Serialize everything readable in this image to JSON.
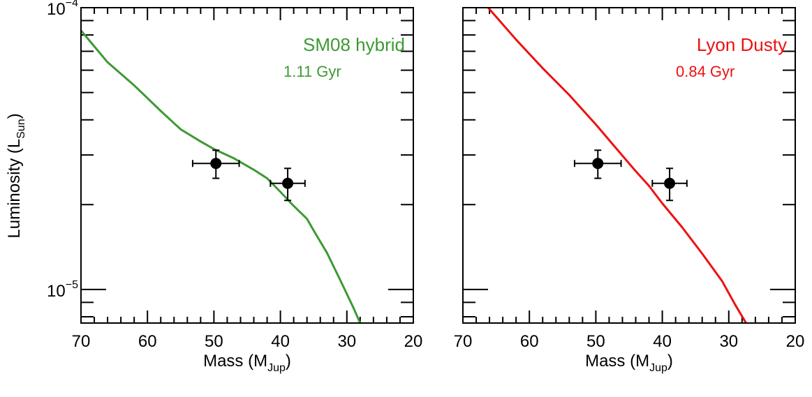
{
  "figure": {
    "ylabel": "Luminosity (L",
    "ylabel_sub": "Sun",
    "ylabel_close": ")"
  },
  "chart_data": [
    {
      "type": "line",
      "xlabel": "Mass (M",
      "xlabel_sub": "Jup",
      "xlabel_close": ")",
      "xlim": [
        70,
        20
      ],
      "xticks": [
        70,
        60,
        50,
        40,
        30,
        20
      ],
      "xtick_labels": [
        "70",
        "60",
        "50",
        "40",
        "30",
        "20"
      ],
      "ylim": [
        7.6e-06,
        0.0001
      ],
      "yscale": "log",
      "yticks": [
        1e-05,
        0.0001
      ],
      "ytick_labels": [
        {
          "base": "10",
          "exp": "−5"
        },
        {
          "base": "10",
          "exp": "−4"
        }
      ],
      "annotations": [
        "SM08 hybrid",
        "1.11 Gyr"
      ],
      "annotation_color": "#3c9a34",
      "series": [
        {
          "name": "SM08 hybrid",
          "color": "#3c9a34",
          "x": [
            70,
            66,
            62,
            58,
            55,
            52,
            50,
            47,
            44,
            42,
            40,
            38,
            36,
            35,
            33,
            31,
            29,
            28
          ],
          "y": [
            8.3e-05,
            6.4e-05,
            5.3e-05,
            4.3e-05,
            3.7e-05,
            3.35e-05,
            3.15e-05,
            2.92e-05,
            2.66e-05,
            2.48e-05,
            2.22e-05,
            1.98e-05,
            1.78e-05,
            1.62e-05,
            1.35e-05,
            1.08e-05,
            8.6e-06,
            7.6e-06
          ]
        }
      ],
      "points": [
        {
          "x": 49.7,
          "y": 2.8e-05,
          "xerr": 3.5,
          "yerr_low": 3.2e-06,
          "yerr_high": 3.2e-06
        },
        {
          "x": 38.9,
          "y": 2.38e-05,
          "xerr": 2.6,
          "yerr_low": 3.1e-06,
          "yerr_high": 3.1e-06
        }
      ]
    },
    {
      "type": "line",
      "xlabel": "Mass (M",
      "xlabel_sub": "Jup",
      "xlabel_close": ")",
      "xlim": [
        70,
        20
      ],
      "xticks": [
        70,
        60,
        50,
        40,
        30,
        20
      ],
      "xtick_labels": [
        "70",
        "60",
        "50",
        "40",
        "30",
        "20"
      ],
      "ylim": [
        7.6e-06,
        0.0001
      ],
      "yscale": "log",
      "yticks": [
        1e-05,
        0.0001
      ],
      "annotations": [
        "Lyon Dusty",
        "0.84 Gyr"
      ],
      "annotation_color": "#ee1111",
      "series": [
        {
          "name": "Lyon Dusty",
          "color": "#ee1111",
          "x": [
            66.2,
            62,
            58,
            54,
            50,
            47,
            44,
            42,
            40,
            37,
            34,
            31,
            29,
            27.4
          ],
          "y": [
            0.0001,
            7.7e-05,
            6.1e-05,
            4.9e-05,
            3.85e-05,
            3.18e-05,
            2.63e-05,
            2.33e-05,
            2.02e-05,
            1.66e-05,
            1.34e-05,
            1.07e-05,
            8.8e-06,
            7.6e-06
          ]
        }
      ],
      "points": [
        {
          "x": 49.7,
          "y": 2.8e-05,
          "xerr": 3.5,
          "yerr_low": 3.2e-06,
          "yerr_high": 3.2e-06
        },
        {
          "x": 38.9,
          "y": 2.38e-05,
          "xerr": 2.6,
          "yerr_low": 3.1e-06,
          "yerr_high": 3.1e-06
        }
      ]
    }
  ]
}
